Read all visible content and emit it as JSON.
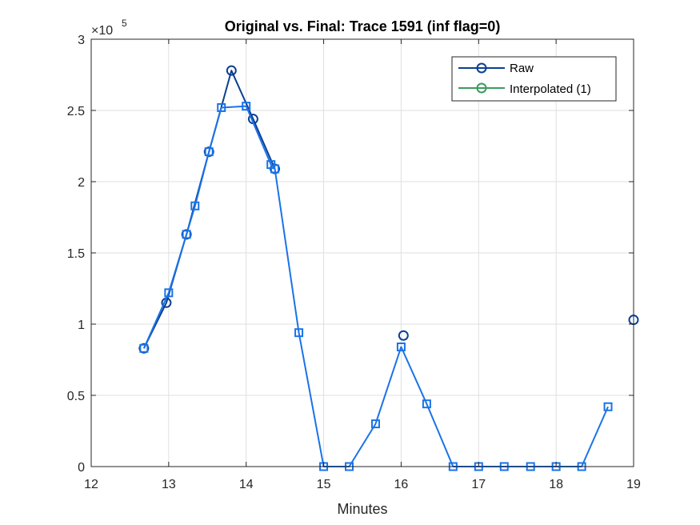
{
  "chart_data": {
    "type": "line",
    "title": "Original vs. Final: Trace 1591 (inf flag=0)",
    "xlabel": "Minutes",
    "ylabel": "",
    "xlim": [
      12,
      19
    ],
    "ylim": [
      0,
      300000
    ],
    "xticks": [
      12,
      13,
      14,
      15,
      16,
      17,
      18,
      19
    ],
    "xtick_labels": [
      "12",
      "13",
      "14",
      "15",
      "16",
      "17",
      "18",
      "19"
    ],
    "yticks": [
      0,
      50000,
      100000,
      150000,
      200000,
      250000,
      300000
    ],
    "ytick_labels": [
      "0",
      "0.5",
      "1",
      "1.5",
      "2",
      "2.5",
      "3"
    ],
    "y_multiplier": {
      "base": "×10",
      "exponent": "5"
    },
    "grid": true,
    "legend_position": "top-right",
    "series": [
      {
        "name": "Raw",
        "color": "#0b3f91",
        "marker": "circle",
        "points": [
          [
            12.68,
            83000
          ],
          [
            12.97,
            115000
          ],
          [
            13.23,
            163000
          ],
          [
            13.52,
            221000
          ],
          [
            13.81,
            278000
          ],
          [
            14.09,
            244000
          ],
          [
            14.37,
            209000
          ],
          [
            16.03,
            92000
          ],
          [
            19.0,
            103000
          ]
        ],
        "segments": [
          [
            0,
            1,
            2,
            3,
            4,
            5,
            6
          ]
        ]
      },
      {
        "name": "Interpolated (1)",
        "color": "#3c9a5f",
        "marker": "circle",
        "points": [],
        "segments": []
      },
      {
        "name": "",
        "color": "#1a73e8",
        "marker": "square",
        "points": [
          [
            12.68,
            83000
          ],
          [
            13.0,
            122000
          ],
          [
            13.23,
            163000
          ],
          [
            13.34,
            183000
          ],
          [
            13.52,
            221000
          ],
          [
            13.68,
            252000
          ],
          [
            14.0,
            253000
          ],
          [
            14.32,
            212000
          ],
          [
            14.37,
            209000
          ],
          [
            14.68,
            94000
          ],
          [
            15.0,
            0
          ],
          [
            15.33,
            0
          ],
          [
            15.67,
            30000
          ],
          [
            16.0,
            84000
          ],
          [
            16.33,
            44000
          ],
          [
            16.67,
            0
          ],
          [
            17.0,
            0
          ],
          [
            17.33,
            0
          ],
          [
            17.67,
            0
          ],
          [
            18.0,
            0
          ],
          [
            18.33,
            0
          ],
          [
            18.67,
            42000
          ]
        ],
        "segments": [
          [
            0,
            1,
            2,
            3,
            4,
            5,
            6,
            7,
            8,
            9,
            10,
            11,
            12,
            13,
            14,
            15,
            16,
            17,
            18,
            19,
            20,
            21
          ]
        ]
      }
    ]
  },
  "legend": {
    "entries": [
      "Raw",
      "Interpolated (1)"
    ]
  }
}
